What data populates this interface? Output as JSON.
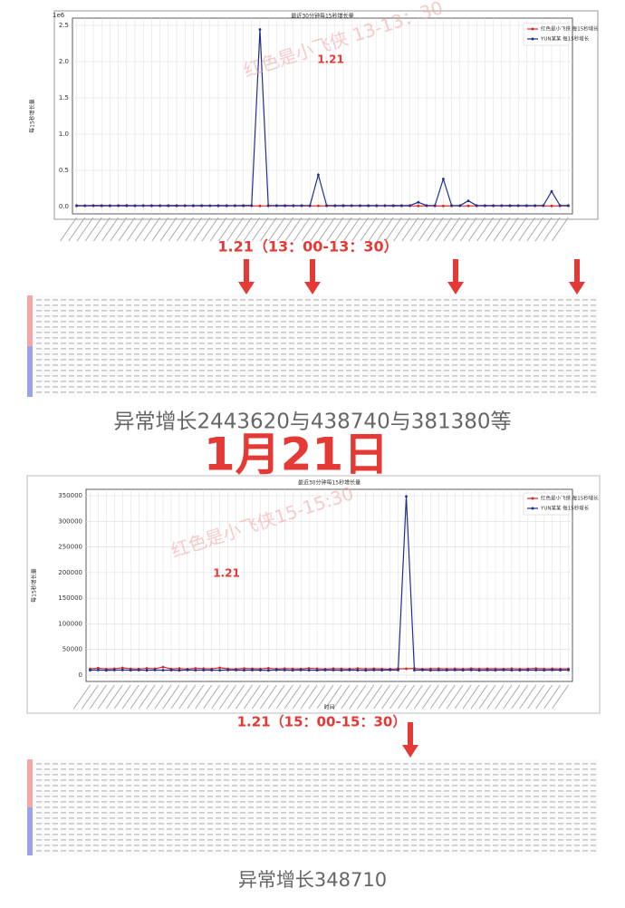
{
  "chart_data": [
    {
      "type": "line",
      "title": "最近30分钟每15秒增长量",
      "y_offset_label": "1e6",
      "ylabel": "每15秒增长量",
      "annotation": "1.21",
      "watermark": "红色是小飞侠 13-13：30",
      "categories": [
        null,
        null,
        null,
        null,
        null,
        null,
        null,
        null,
        null,
        null,
        null,
        null,
        null,
        null,
        null,
        null,
        null,
        null,
        null,
        null,
        null,
        null,
        null,
        null,
        null,
        null,
        null,
        null,
        null,
        null,
        null,
        null,
        null,
        null,
        null,
        null,
        null,
        null,
        null,
        null,
        null,
        null,
        null,
        null,
        null,
        null,
        null,
        null,
        null,
        null,
        null,
        null,
        null,
        null,
        null,
        null,
        null,
        null,
        null,
        null
      ],
      "ylim": [
        -100000,
        2600000
      ],
      "yticks": [
        {
          "value": 0,
          "label": "0.0"
        },
        {
          "value": 500000,
          "label": "0.5"
        },
        {
          "value": 1000000,
          "label": "1.0"
        },
        {
          "value": 1500000,
          "label": "1.5"
        },
        {
          "value": 2000000,
          "label": "2.0"
        },
        {
          "value": 2500000,
          "label": "2.5"
        }
      ],
      "grid": true,
      "legend": "upper right",
      "series": [
        {
          "name": "红色是小飞侠 每15秒增长",
          "color": "#d62728",
          "values": [
            9800,
            10200,
            10500,
            9900,
            10100,
            10300,
            9700,
            10000,
            10400,
            9900,
            10200,
            10100,
            9800,
            10300,
            10000,
            9900,
            10500,
            10100,
            9700,
            10200,
            10000,
            10300,
            9900,
            10100,
            10400,
            9800,
            10000,
            10200,
            9900,
            10300,
            10100,
            9800,
            10000,
            10400,
            10200,
            9900,
            10100,
            10300,
            9700,
            10000,
            10200,
            9900,
            10400,
            10100,
            9800,
            10000,
            10300,
            10200,
            9900,
            10100,
            10000,
            10400,
            9800,
            10200,
            10100,
            9900,
            10300,
            10000,
            10200,
            9900
          ]
        },
        {
          "name": "YUN某某 每15秒增长",
          "color": "#1f2f8f",
          "values": [
            15000,
            14000,
            16000,
            15500,
            14800,
            15200,
            16100,
            14500,
            15000,
            15800,
            14900,
            15300,
            16000,
            14700,
            15100,
            15600,
            14400,
            15900,
            15000,
            14600,
            15400,
            15200,
            2443620,
            15000,
            14800,
            15600,
            15100,
            14900,
            15300,
            438740,
            15200,
            14700,
            15500,
            15000,
            14600,
            15800,
            15100,
            14900,
            15400,
            15000,
            15200,
            60000,
            15100,
            14800,
            381380,
            15300,
            15000,
            80000,
            14900,
            15500,
            15100,
            14700,
            15300,
            15000,
            15600,
            14800,
            15200,
            210000,
            15000,
            15400
          ]
        }
      ]
    },
    {
      "type": "line",
      "title": "最近30分钟每15秒增长量",
      "ylabel": "每15秒增长量",
      "xlabel": "时间",
      "annotation": "1.21",
      "watermark": "红色是小飞侠15-15:30",
      "categories": [
        null,
        null,
        null,
        null,
        null,
        null,
        null,
        null,
        null,
        null,
        null,
        null,
        null,
        null,
        null,
        null,
        null,
        null,
        null,
        null,
        null,
        null,
        null,
        null,
        null,
        null,
        null,
        null,
        null,
        null,
        null,
        null,
        null,
        null,
        null,
        null,
        null,
        null,
        null,
        null,
        null,
        null,
        null,
        null,
        null,
        null,
        null,
        null,
        null,
        null,
        null,
        null,
        null,
        null,
        null,
        null,
        null,
        null,
        null,
        null
      ],
      "ylim": [
        -12500,
        362500
      ],
      "yticks": [
        0,
        50000,
        100000,
        150000,
        200000,
        250000,
        300000,
        350000
      ],
      "grid": true,
      "legend": "upper right",
      "series": [
        {
          "name": "红色是小飞侠 每15秒增长",
          "color": "#d62728",
          "values": [
            12000,
            13500,
            11800,
            12500,
            14000,
            12200,
            11900,
            13000,
            12400,
            15500,
            12100,
            12800,
            11700,
            13200,
            12600,
            12000,
            14200,
            12300,
            11800,
            12900,
            12500,
            12100,
            13400,
            11900,
            12700,
            12200,
            12000,
            13100,
            12400,
            11800,
            12600,
            12300,
            11900,
            12800,
            12100,
            12500,
            12000,
            11700,
            12400,
            12200,
            12900,
            11800,
            12300,
            12600,
            12000,
            12400,
            11900,
            12700,
            12100,
            12500,
            12200,
            12000,
            12600,
            11800,
            12300,
            12900,
            12100,
            12400,
            12000,
            12200
          ]
        },
        {
          "name": "YUN某某 每15秒增长",
          "color": "#1f2f8f",
          "values": [
            9500,
            9800,
            9200,
            9600,
            9900,
            9400,
            9700,
            9300,
            9800,
            9500,
            9600,
            9200,
            9900,
            9400,
            9700,
            9500,
            9300,
            9800,
            9600,
            9400,
            9700,
            9500,
            9200,
            9900,
            9600,
            9300,
            9800,
            9500,
            9400,
            9700,
            9600,
            9300,
            9800,
            9500,
            9200,
            9700,
            9400,
            9900,
            9600,
            348710,
            9500,
            9800,
            9300,
            9600,
            9400,
            9700,
            9500,
            9900,
            9200,
            9600,
            9400,
            9800,
            9500,
            9300,
            9700,
            9600,
            9400,
            9800,
            9500,
            9700
          ]
        }
      ]
    }
  ],
  "captions": {
    "range_1": "1.21（13：00-13：30）",
    "growth_1": "异常增长2443620与438740与381380等",
    "date": "1月21日",
    "range_2": "1.21（15：00-15：30）",
    "growth_2": "异常增长348710"
  }
}
